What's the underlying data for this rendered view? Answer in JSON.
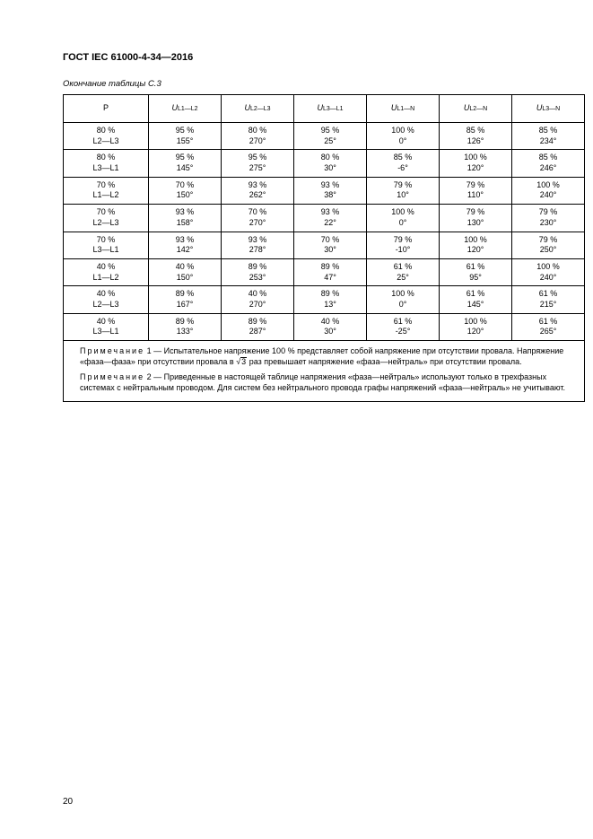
{
  "doc_header": "ГОСТ IEC 61000-4-34—2016",
  "continuation": "Окончание таблицы С.3",
  "page_number": "20",
  "header": {
    "p": "P",
    "u_pre": "U",
    "cols_sub": [
      "L1—L2",
      "L2—L3",
      "L3—L1",
      "L1—N",
      "L2—N",
      "L3—N"
    ]
  },
  "rows": [
    {
      "p1": "80 %",
      "p2": "L2—L3",
      "c": [
        [
          "95 %",
          "155°"
        ],
        [
          "80 %",
          "270°"
        ],
        [
          "95 %",
          "25°"
        ],
        [
          "100 %",
          "0°"
        ],
        [
          "85 %",
          "126°"
        ],
        [
          "85 %",
          "234°"
        ]
      ]
    },
    {
      "p1": "80 %",
      "p2": "L3—L1",
      "c": [
        [
          "95 %",
          "145°"
        ],
        [
          "95 %",
          "275°"
        ],
        [
          "80 %",
          "30°"
        ],
        [
          "85 %",
          "-6°"
        ],
        [
          "100 %",
          "120°"
        ],
        [
          "85 %",
          "246°"
        ]
      ]
    },
    {
      "p1": "70 %",
      "p2": "L1—L2",
      "c": [
        [
          "70 %",
          "150°"
        ],
        [
          "93 %",
          "262°"
        ],
        [
          "93 %",
          "38°"
        ],
        [
          "79 %",
          "10°"
        ],
        [
          "79 %",
          "110°"
        ],
        [
          "100 %",
          "240°"
        ]
      ]
    },
    {
      "p1": "70 %",
      "p2": "L2—L3",
      "c": [
        [
          "93 %",
          "158°"
        ],
        [
          "70 %",
          "270°"
        ],
        [
          "93 %",
          "22°"
        ],
        [
          "100 %",
          "0°"
        ],
        [
          "79 %",
          "130°"
        ],
        [
          "79 %",
          "230°"
        ]
      ]
    },
    {
      "p1": "70 %",
      "p2": "L3—L1",
      "c": [
        [
          "93 %",
          "142°"
        ],
        [
          "93 %",
          "278°"
        ],
        [
          "70 %",
          "30°"
        ],
        [
          "79 %",
          "-10°"
        ],
        [
          "100 %",
          "120°"
        ],
        [
          "79 %",
          "250°"
        ]
      ]
    },
    {
      "p1": "40 %",
      "p2": "L1—L2",
      "c": [
        [
          "40 %",
          "150°"
        ],
        [
          "89 %",
          "253°"
        ],
        [
          "89 %",
          "47°"
        ],
        [
          "61 %",
          "25°"
        ],
        [
          "61 %",
          "95°"
        ],
        [
          "100 %",
          "240°"
        ]
      ]
    },
    {
      "p1": "40 %",
      "p2": "L2—L3",
      "c": [
        [
          "89 %",
          "167°"
        ],
        [
          "40 %",
          "270°"
        ],
        [
          "89 %",
          "13°"
        ],
        [
          "100 %",
          "0°"
        ],
        [
          "61 %",
          "145°"
        ],
        [
          "61 %",
          "215°"
        ]
      ]
    },
    {
      "p1": "40 %",
      "p2": "L3—L1",
      "c": [
        [
          "89 %",
          "133°"
        ],
        [
          "89 %",
          "287°"
        ],
        [
          "40 %",
          "30°"
        ],
        [
          "61 %",
          "-25°"
        ],
        [
          "100 %",
          "120°"
        ],
        [
          "61 %",
          "265°"
        ]
      ]
    }
  ],
  "notes": {
    "n1_lead": "Примечание",
    "n1_num": " 1 — ",
    "n1_body_a": "Испытательное напряжение 100 % представляет собой напряжение при отсутствии провала. Напряжение «фаза—фаза» при отсутствии провала в ",
    "n1_sqrt": "√",
    "n1_sqrt_arg": "3",
    "n1_body_b": " раз превышает напряжение «фаза—ней­траль» при отсутствии провала.",
    "n2_lead": "Примечание",
    "n2_num": " 2 — ",
    "n2_body": "Приведенные в настоящей таблице напряжения «фаза—нейтраль» используют только в трехфазных системах с нейтральным проводом. Для систем без нейтрального провода графы напря­жений «фаза—нейтраль» не учитывают."
  }
}
